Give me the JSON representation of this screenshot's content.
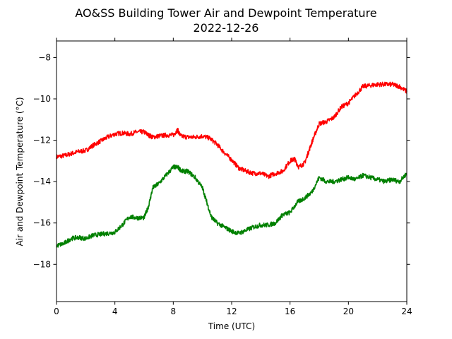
{
  "chart_data": {
    "type": "line",
    "title": "AO&SS Building Tower Air and Dewpoint Temperature",
    "subtitle": "2022-12-26",
    "xlabel": "Time (UTC)",
    "ylabel": "Air and Dewpoint Temperature (°C)",
    "xlim": [
      0,
      24
    ],
    "ylim": [
      -19.8,
      -7.2
    ],
    "xticks": [
      0,
      4,
      8,
      12,
      16,
      20,
      24
    ],
    "yticks": [
      -18,
      -16,
      -14,
      -12,
      -10,
      -8
    ],
    "grid": false,
    "series": [
      {
        "color": "#ff0000",
        "x": [
          0,
          0.5,
          1,
          1.5,
          2,
          2.5,
          3,
          3.5,
          4,
          4.5,
          5,
          5.5,
          6,
          6.3,
          6.6,
          7,
          7.5,
          8,
          8.3,
          8.5,
          9,
          9.5,
          10,
          10.5,
          11,
          11.5,
          12,
          12.5,
          13,
          13.5,
          14,
          14.5,
          15,
          15.5,
          16,
          16.3,
          16.6,
          17,
          17.3,
          17.6,
          18,
          18.5,
          19,
          19.5,
          20,
          20.5,
          21,
          21.5,
          22,
          22.5,
          23,
          23.5,
          24
        ],
        "y": [
          -12.8,
          -12.75,
          -12.65,
          -12.55,
          -12.5,
          -12.25,
          -12.05,
          -11.85,
          -11.7,
          -11.65,
          -11.7,
          -11.6,
          -11.6,
          -11.75,
          -11.85,
          -11.8,
          -11.75,
          -11.75,
          -11.5,
          -11.8,
          -11.85,
          -11.85,
          -11.8,
          -11.9,
          -12.2,
          -12.6,
          -12.95,
          -13.35,
          -13.5,
          -13.6,
          -13.6,
          -13.75,
          -13.6,
          -13.5,
          -13.0,
          -12.9,
          -13.3,
          -13.1,
          -12.5,
          -11.9,
          -11.2,
          -11.1,
          -10.9,
          -10.4,
          -10.2,
          -9.8,
          -9.4,
          -9.35,
          -9.3,
          -9.3,
          -9.3,
          -9.4,
          -9.65
        ]
      },
      {
        "color": "#008000",
        "x": [
          0,
          0.5,
          1,
          1.5,
          2,
          2.5,
          3,
          3.5,
          4,
          4.5,
          5,
          5.5,
          6,
          6.3,
          6.6,
          7,
          7.5,
          8,
          8.3,
          8.6,
          9,
          9.5,
          10,
          10.3,
          10.6,
          11,
          11.5,
          12,
          12.5,
          13,
          13.5,
          14,
          14.5,
          15,
          15.5,
          16,
          16.5,
          17,
          17.5,
          18,
          18.5,
          19,
          19.5,
          20,
          20.5,
          21,
          21.5,
          22,
          22.5,
          23,
          23.5,
          24
        ],
        "y": [
          -17.1,
          -17.0,
          -16.75,
          -16.7,
          -16.75,
          -16.6,
          -16.55,
          -16.5,
          -16.45,
          -16.1,
          -15.7,
          -15.75,
          -15.75,
          -15.2,
          -14.3,
          -14.1,
          -13.7,
          -13.3,
          -13.3,
          -13.5,
          -13.5,
          -13.8,
          -14.3,
          -15.0,
          -15.7,
          -16.0,
          -16.2,
          -16.4,
          -16.5,
          -16.35,
          -16.2,
          -16.1,
          -16.1,
          -16.0,
          -15.6,
          -15.5,
          -15.0,
          -14.8,
          -14.5,
          -13.8,
          -14.0,
          -14.0,
          -13.9,
          -13.8,
          -13.9,
          -13.7,
          -13.8,
          -13.9,
          -14.0,
          -13.9,
          -14.0,
          -13.6
        ]
      }
    ]
  }
}
